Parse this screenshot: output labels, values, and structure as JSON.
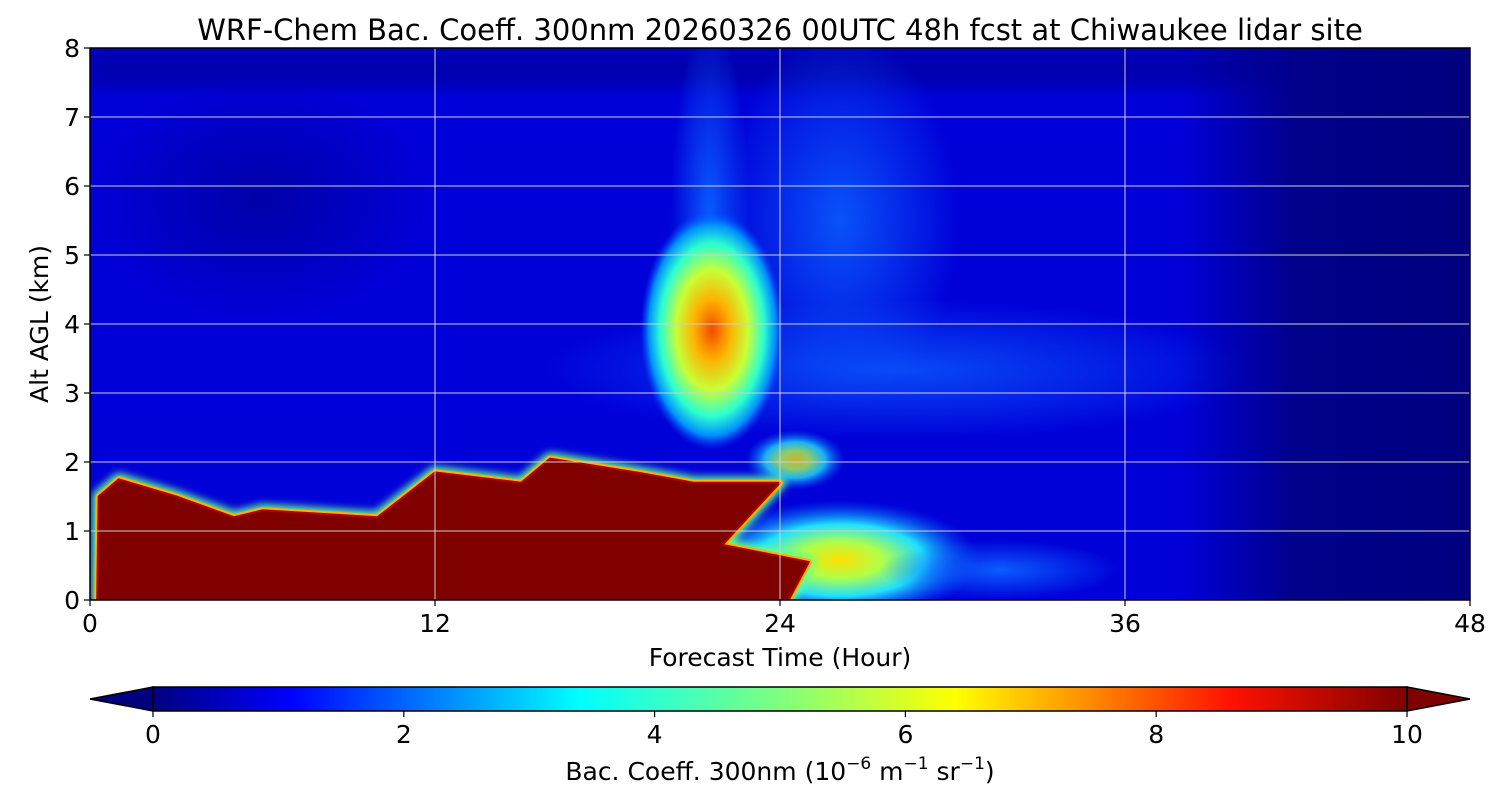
{
  "chart_data": {
    "type": "heatmap",
    "title": "WRF-Chem Bac. Coeff. 300nm  20260326 00UTC 48h fcst at Chiwaukee lidar site",
    "xlabel": "Forecast Time (Hour)",
    "ylabel": "Alt AGL (km)",
    "xlim": [
      0,
      48
    ],
    "ylim": [
      0,
      8
    ],
    "xticks": [
      0,
      12,
      24,
      36,
      48
    ],
    "yticks": [
      0,
      1,
      2,
      3,
      4,
      5,
      6,
      7,
      8
    ],
    "grid": true,
    "colormap": "jet",
    "colorbar": {
      "label_prefix": "Bac. Coeff. 300nm  (10",
      "label_exp1": "−6",
      "label_mid": " m",
      "label_exp2": "−1",
      "label_mid2": " sr",
      "label_exp3": "−1",
      "label_suffix": ")",
      "range": [
        0,
        10
      ],
      "ticks": [
        0,
        2,
        4,
        6,
        8,
        10
      ],
      "extend": "both",
      "colors": [
        "#00007f",
        "#0000ff",
        "#007fff",
        "#00ffff",
        "#7fff7f",
        "#ffff00",
        "#ff7f00",
        "#ff0000",
        "#7f0000"
      ]
    },
    "saturated_layer_top_km": [
      [
        0.3,
        1.5
      ],
      [
        1,
        1.75
      ],
      [
        3,
        1.5
      ],
      [
        5,
        1.2
      ],
      [
        6,
        1.3
      ],
      [
        10,
        1.2
      ],
      [
        12,
        1.85
      ],
      [
        15,
        1.7
      ],
      [
        16,
        2.05
      ],
      [
        19,
        1.85
      ],
      [
        21,
        1.7
      ],
      [
        24,
        1.7
      ],
      [
        22,
        0.8
      ],
      [
        25,
        0.55
      ]
    ],
    "notable_features": [
      {
        "x_hour": 21.5,
        "alt_km": 4.0,
        "value": 8.5
      },
      {
        "x_hour": 25.5,
        "alt_km": 0.6,
        "value": 6.5
      },
      {
        "x_hour": 24.5,
        "alt_km": 2.3,
        "value": 5.0
      }
    ]
  }
}
